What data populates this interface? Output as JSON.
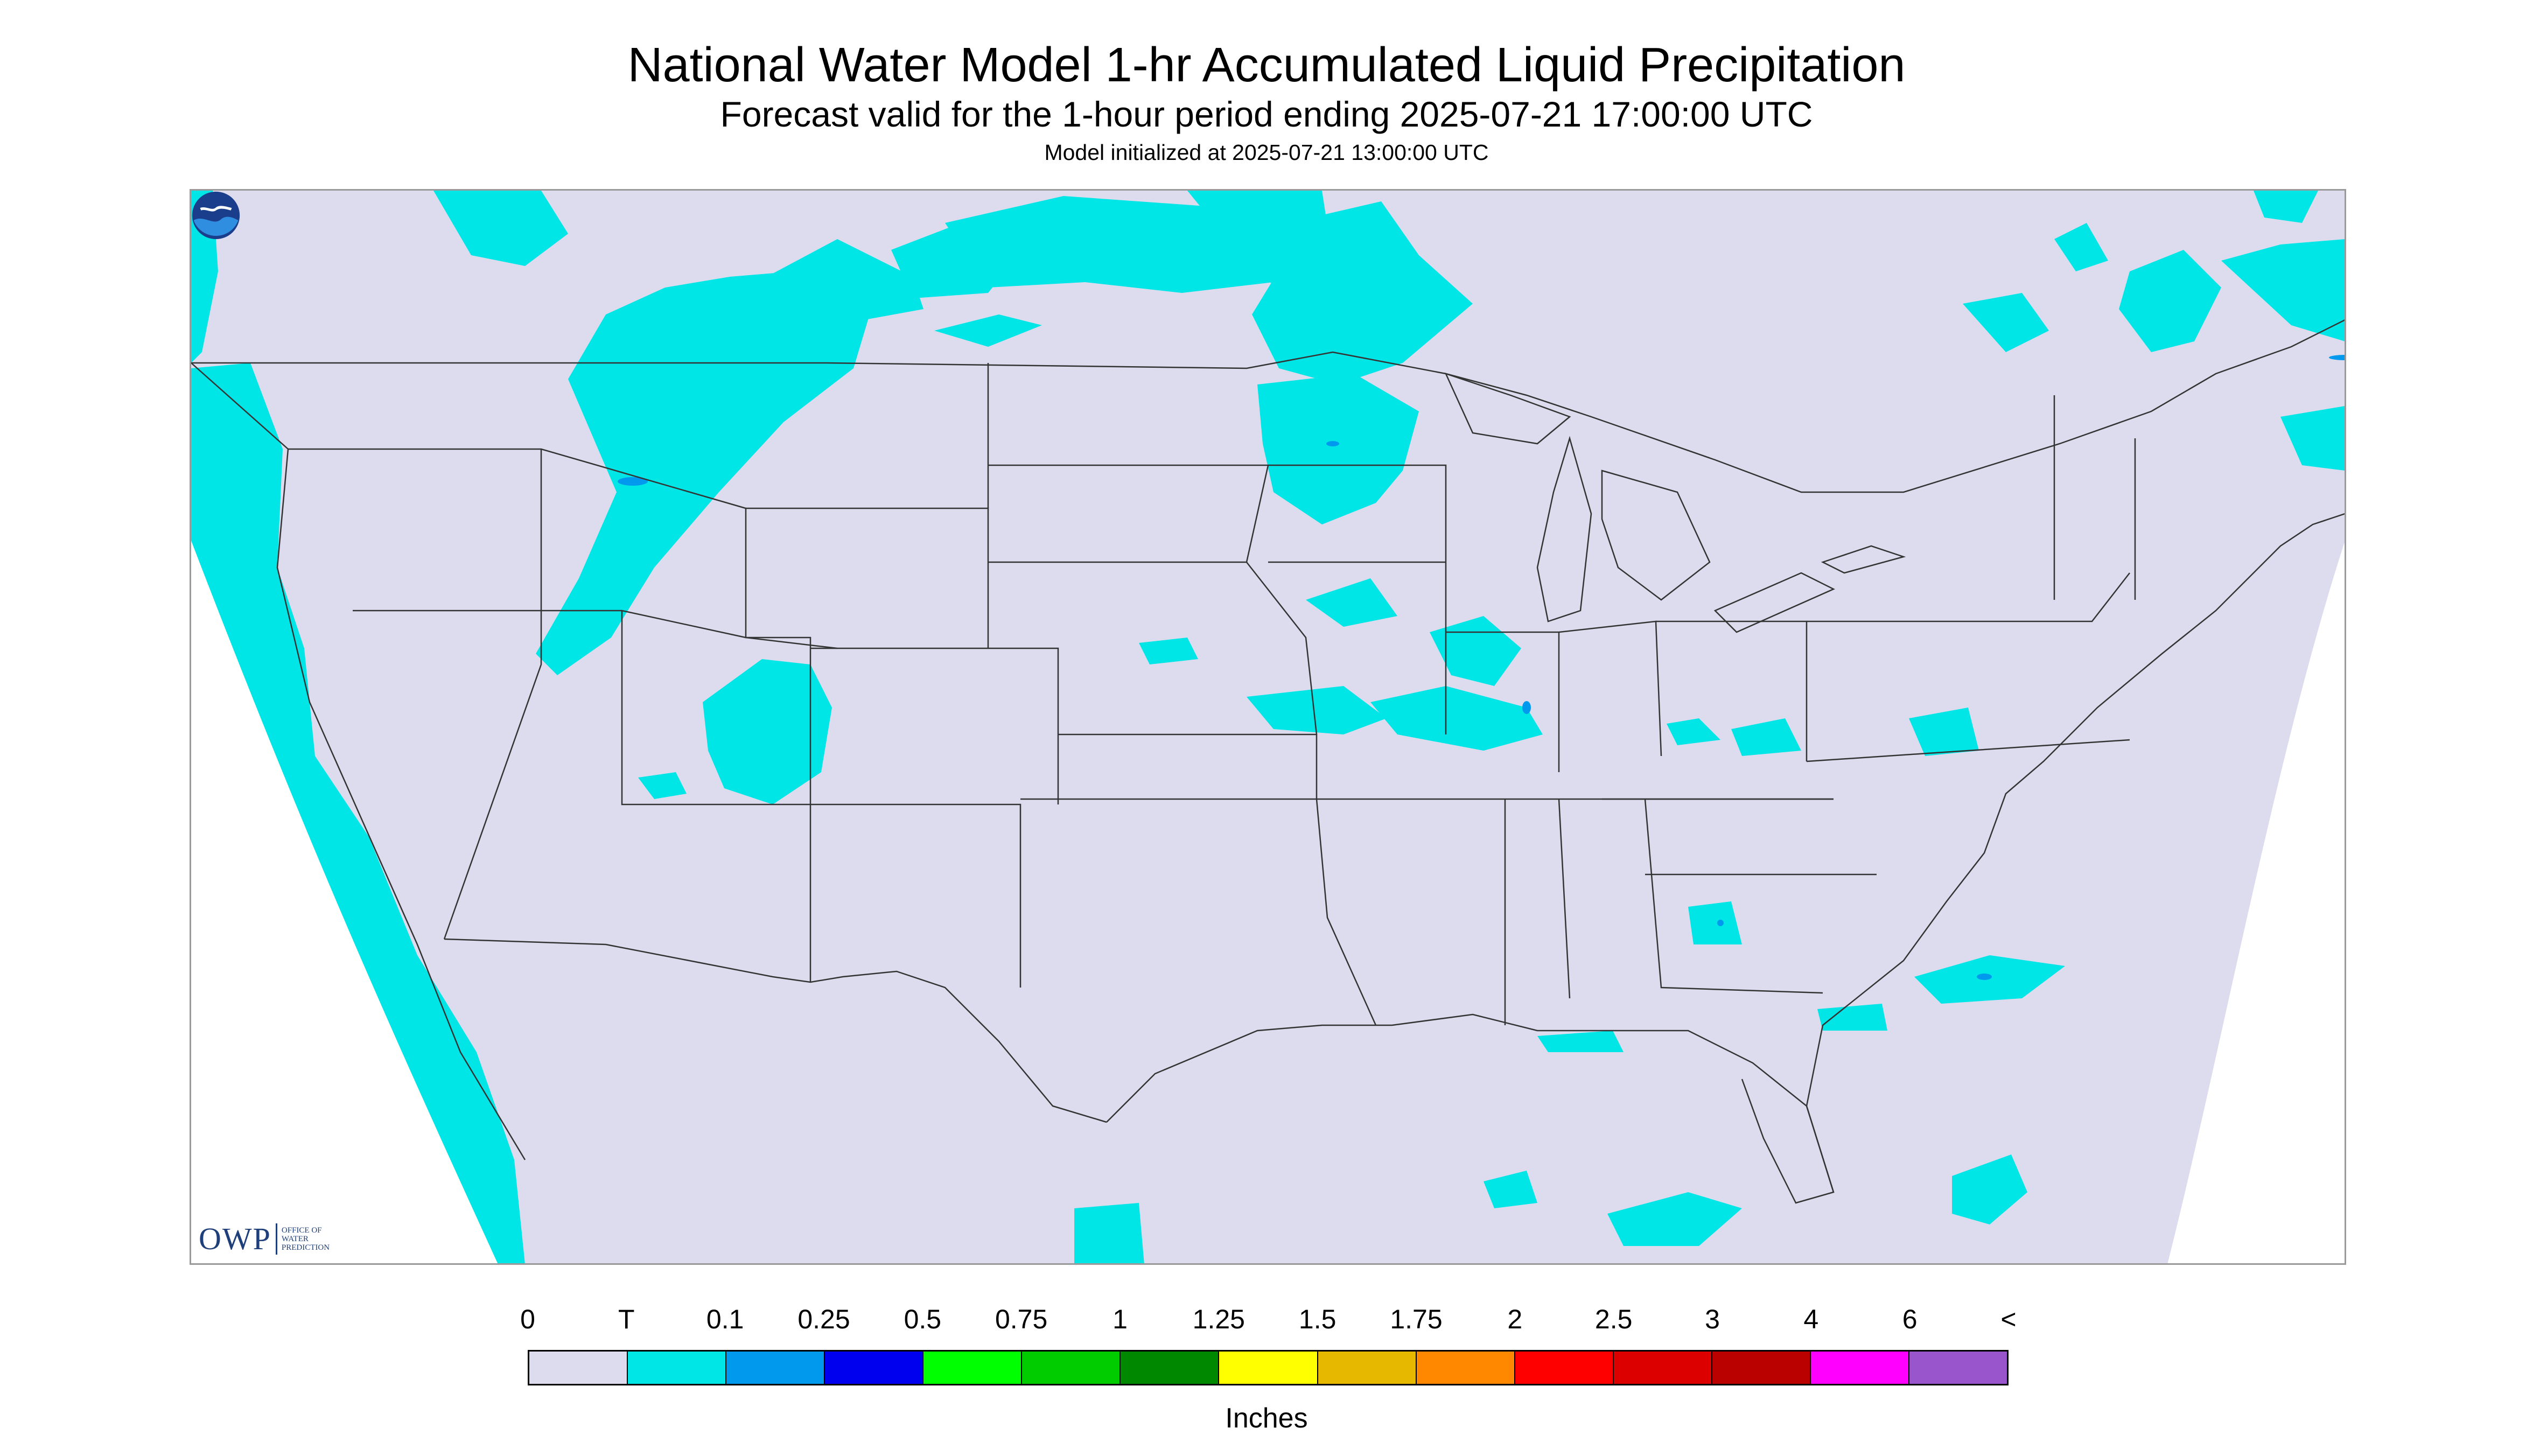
{
  "title": "National Water Model 1-hr Accumulated Liquid Precipitation",
  "subtitle": "Forecast valid for the 1-hour period ending 2025-07-21 17:00:00 UTC",
  "model_init": "Model initialized at 2025-07-21 13:00:00 UTC",
  "logo": {
    "owp_text": "OWP",
    "owp_caption": "OFFICE OF WATER PREDICTION",
    "noaa_icon": "noaa-logo-icon"
  },
  "map": {
    "region": "Continental United States",
    "background_color": "#dcdcee",
    "outside_color": "#ffffff",
    "trace_color": "#00e5e5",
    "light_blue_color": "#0099ee",
    "boundary_color": "#333333"
  },
  "legend": {
    "units": "Inches",
    "tick_labels": [
      "0",
      "T",
      "0.1",
      "0.25",
      "0.5",
      "0.75",
      "1",
      "1.25",
      "1.5",
      "1.75",
      "2",
      "2.5",
      "3",
      "4",
      "6",
      "<"
    ],
    "colors": [
      "#dcdcee",
      "#00e5e5",
      "#0099ee",
      "#0000ee",
      "#00ff00",
      "#00cc00",
      "#008800",
      "#ffff00",
      "#e6b800",
      "#ff8800",
      "#ff0000",
      "#dd0000",
      "#bb0000",
      "#ff00ff",
      "#9955cc"
    ]
  }
}
